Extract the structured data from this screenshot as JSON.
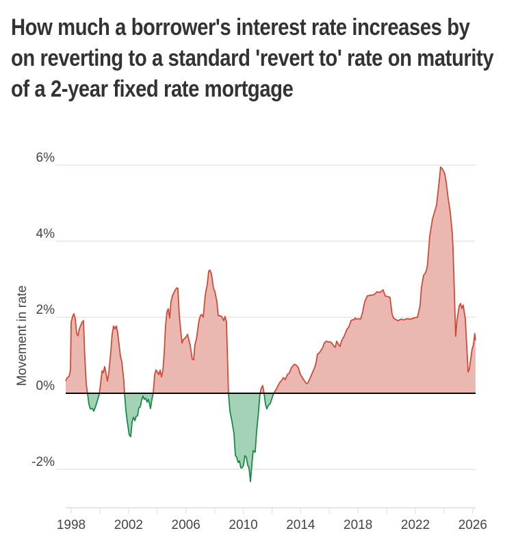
{
  "chart_data": {
    "type": "area",
    "title": "How much a borrower's interest rate increases by on reverting to a standard 'revert to' rate on maturity of a 2-year fixed rate mortgage",
    "xlabel": "",
    "ylabel": "Movement in rate",
    "xlim": [
      1997.6,
      2026.2
    ],
    "ylim": [
      -3,
      6
    ],
    "x_ticks": [
      "1998",
      "2002",
      "2006",
      "2010",
      "2014",
      "2018",
      "2022",
      "2026"
    ],
    "y_ticks": [
      {
        "value": 6,
        "label": "6%"
      },
      {
        "value": 4,
        "label": "4%"
      },
      {
        "value": 2,
        "label": "2%"
      },
      {
        "value": 0,
        "label": "0%"
      },
      {
        "value": -2,
        "label": "-2%"
      }
    ],
    "grid": true,
    "legend": "none",
    "colors": {
      "positive_line": "#cf4a36",
      "positive_fill": "#ebb8b1",
      "negative_line": "#178a48",
      "negative_fill": "#a4d2b6",
      "zero_line": "#000000"
    },
    "series": [
      {
        "x": [
          1997.62,
          1997.71,
          1997.86,
          1997.95,
          1998.0,
          1998.1,
          1998.19,
          1998.29,
          1998.38,
          1998.48,
          1998.57,
          1998.67,
          1998.76,
          1998.86,
          1998.95,
          1999.05,
          1999.14,
          1999.24,
          1999.34,
          1999.48,
          1999.57,
          1999.67,
          1999.81,
          1999.96,
          2000.05,
          2000.15,
          2000.24,
          2000.34,
          2000.43,
          2000.53,
          2000.62,
          2000.77,
          2000.86,
          2000.96,
          2001.05,
          2001.15,
          2001.24,
          2001.43,
          2001.53,
          2001.67,
          2001.72,
          2001.82,
          2001.91,
          2002.05,
          2002.15,
          2002.25,
          2002.34,
          2002.44,
          2002.53,
          2002.63,
          2002.72,
          2002.82,
          2002.91,
          2003.01,
          2003.1,
          2003.2,
          2003.29,
          2003.39,
          2003.53,
          2003.63,
          2003.72,
          2003.82,
          2003.91,
          2004.01,
          2004.11,
          2004.2,
          2004.3,
          2004.39,
          2004.49,
          2004.58,
          2004.68,
          2004.77,
          2004.87,
          2004.96,
          2005.06,
          2005.2,
          2005.35,
          2005.44,
          2005.54,
          2005.63,
          2005.73,
          2005.82,
          2006.01,
          2006.11,
          2006.2,
          2006.3,
          2006.44,
          2006.54,
          2006.63,
          2006.73,
          2006.92,
          2007.02,
          2007.11,
          2007.21,
          2007.35,
          2007.49,
          2007.59,
          2007.68,
          2007.78,
          2007.92,
          2008.02,
          2008.16,
          2008.26,
          2008.35,
          2008.49,
          2008.64,
          2008.73,
          2008.83,
          2008.97,
          2009.07,
          2009.21,
          2009.35,
          2009.45,
          2009.54,
          2009.64,
          2009.73,
          2009.83,
          2009.92,
          2010.02,
          2010.11,
          2010.21,
          2010.31,
          2010.4,
          2010.5,
          2010.59,
          2010.69,
          2010.83,
          2010.93,
          2011.07,
          2011.17,
          2011.26,
          2011.36,
          2011.45,
          2011.55,
          2011.64,
          2011.74,
          2011.88,
          2012.02,
          2012.12,
          2012.31,
          2012.45,
          2012.55,
          2012.64,
          2012.79,
          2012.93,
          2013.07,
          2013.22,
          2013.36,
          2013.55,
          2013.69,
          2013.84,
          2013.98,
          2014.12,
          2014.27,
          2014.41,
          2014.5,
          2014.7,
          2014.84,
          2014.98,
          2015.08,
          2015.17,
          2015.27,
          2015.41,
          2015.55,
          2015.65,
          2015.79,
          2015.94,
          2016.08,
          2016.17,
          2016.32,
          2016.41,
          2016.51,
          2016.65,
          2016.75,
          2016.84,
          2016.94,
          2017.03,
          2017.22,
          2017.37,
          2017.51,
          2017.6,
          2017.7,
          2017.8,
          2017.89,
          2018.03,
          2018.18,
          2018.32,
          2018.46,
          2018.65,
          2018.89,
          2019.08,
          2019.23,
          2019.32,
          2019.46,
          2019.61,
          2019.75,
          2019.9,
          2020.09,
          2020.23,
          2020.37,
          2020.47,
          2020.66,
          2020.8,
          2020.99,
          2021.18,
          2021.42,
          2021.66,
          2021.9,
          2022.14,
          2022.23,
          2022.33,
          2022.42,
          2022.57,
          2022.71,
          2022.8,
          2022.85,
          2023.0,
          2023.19,
          2023.33,
          2023.47,
          2023.57,
          2023.66,
          2023.76,
          2023.9,
          2024.04,
          2024.14,
          2024.28,
          2024.43,
          2024.57,
          2024.62,
          2024.71,
          2024.81,
          2024.9,
          2025.05,
          2025.14,
          2025.24,
          2025.33,
          2025.48,
          2025.62,
          2025.67,
          2025.76,
          2025.95,
          2026.05,
          2026.14,
          2026.19
        ],
        "y": [
          0.32,
          0.4,
          0.45,
          0.61,
          1.87,
          2.02,
          2.09,
          1.95,
          1.57,
          1.51,
          1.69,
          1.78,
          1.87,
          1.91,
          0.97,
          0.25,
          0,
          -0.29,
          -0.41,
          -0.4,
          -0.47,
          -0.38,
          -0.22,
          -0.02,
          0.25,
          0.59,
          0.54,
          0.7,
          0.52,
          0.32,
          0.52,
          1.12,
          1.55,
          1.77,
          1.69,
          1.77,
          1.6,
          0.99,
          0.83,
          0.34,
          0,
          -0.47,
          -0.74,
          -1.1,
          -1.14,
          -0.74,
          -0.63,
          -0.72,
          -0.61,
          -0.59,
          -0.38,
          -0.36,
          -0.18,
          -0.07,
          -0.16,
          -0.13,
          -0.23,
          -0.16,
          -0.4,
          -0.16,
          0,
          0.47,
          0.61,
          0.56,
          0.49,
          0.61,
          0.43,
          0.58,
          1.06,
          1.77,
          2.14,
          2.22,
          1.98,
          2.41,
          2.56,
          2.68,
          2.77,
          2.76,
          2.05,
          1.69,
          1.32,
          1.41,
          1.48,
          1.55,
          1.41,
          1.26,
          0.9,
          0.88,
          1.28,
          1.42,
          1.93,
          2.05,
          2.07,
          2.0,
          2.59,
          2.86,
          3.21,
          3.24,
          3.14,
          2.77,
          2.68,
          2.4,
          2.04,
          2.04,
          2.02,
          1.91,
          2.02,
          1.87,
          0,
          -0.47,
          -0.74,
          -1.05,
          -1.64,
          -1.68,
          -1.82,
          -1.78,
          -1.96,
          -1.96,
          -1.89,
          -1.64,
          -1.68,
          -1.89,
          -1.96,
          -2.32,
          -1.91,
          -1.51,
          -1.55,
          -1.01,
          -0.47,
          0,
          0.14,
          0.2,
          0,
          -0.29,
          -0.41,
          -0.32,
          -0.27,
          -0.11,
          0,
          0.11,
          0.22,
          0.29,
          0.32,
          0.41,
          0.36,
          0.49,
          0.54,
          0.67,
          0.76,
          0.74,
          0.67,
          0.5,
          0.41,
          0.32,
          0.25,
          0.27,
          0.43,
          0.56,
          0.68,
          0.81,
          1.03,
          1.05,
          1.12,
          1.21,
          1.32,
          1.37,
          1.35,
          1.35,
          1.32,
          1.24,
          1.21,
          1.37,
          1.28,
          1.23,
          1.37,
          1.44,
          1.5,
          1.68,
          1.75,
          1.91,
          1.93,
          1.93,
          1.98,
          1.95,
          1.96,
          1.95,
          2.13,
          2.4,
          2.56,
          2.58,
          2.59,
          2.63,
          2.67,
          2.65,
          2.67,
          2.72,
          2.56,
          2.54,
          2.52,
          2.09,
          1.98,
          1.93,
          1.91,
          1.95,
          1.93,
          1.96,
          1.95,
          1.98,
          2.0,
          2.14,
          2.32,
          2.77,
          3.1,
          3.17,
          3.28,
          3.41,
          4.13,
          4.58,
          4.76,
          4.94,
          5.26,
          5.57,
          5.95,
          5.89,
          5.78,
          5.57,
          5.15,
          4.76,
          4.22,
          3.82,
          2.77,
          1.5,
          1.91,
          2.29,
          2.36,
          2.23,
          2.32,
          1.96,
          0.97,
          0.56,
          0.63,
          1.15,
          1.28,
          1.57,
          1.39
        ]
      }
    ]
  }
}
